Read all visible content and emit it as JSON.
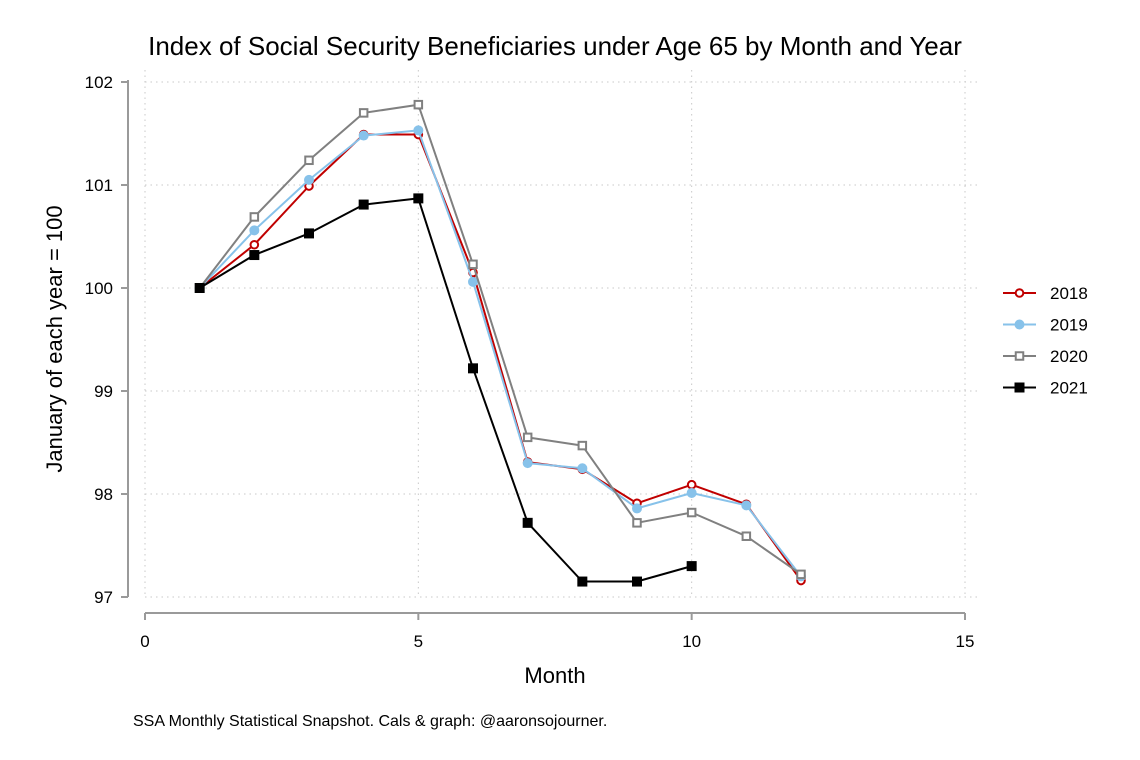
{
  "chart_data": {
    "type": "line",
    "title": "Index of Social Security Beneficiaries under Age 65 by Month and Year",
    "xlabel": "Month",
    "ylabel": "January of each year = 100",
    "caption": "SSA Monthly Statistical Snapshot. Cals & graph: @aaronsojourner.",
    "xlim": [
      0,
      15
    ],
    "ylim": [
      97,
      102
    ],
    "xticks": [
      "0",
      "5",
      "10",
      "15"
    ],
    "yticks": [
      "97",
      "98",
      "99",
      "100",
      "101",
      "102"
    ],
    "grid": true,
    "legend_position": "right",
    "series": [
      {
        "name": "2018",
        "color": "#c00000",
        "marker": "circle-hollow",
        "x": [
          1,
          2,
          3,
          4,
          5,
          6,
          7,
          8,
          9,
          10,
          11,
          12
        ],
        "values": [
          100.0,
          100.42,
          100.99,
          101.49,
          101.49,
          100.15,
          98.31,
          98.24,
          97.91,
          98.09,
          97.9,
          97.16
        ]
      },
      {
        "name": "2019",
        "color": "#87c2ea",
        "marker": "circle-filled",
        "x": [
          1,
          2,
          3,
          4,
          5,
          6,
          7,
          8,
          9,
          10,
          11,
          12
        ],
        "values": [
          100.0,
          100.56,
          101.05,
          101.48,
          101.53,
          100.06,
          98.3,
          98.25,
          97.86,
          98.01,
          97.89,
          97.2
        ]
      },
      {
        "name": "2020",
        "color": "#808080",
        "marker": "square-hollow",
        "x": [
          1,
          2,
          3,
          4,
          5,
          6,
          7,
          8,
          9,
          10,
          11,
          12
        ],
        "values": [
          100.0,
          100.69,
          101.24,
          101.7,
          101.78,
          100.23,
          98.55,
          98.47,
          97.72,
          97.82,
          97.59,
          97.22
        ]
      },
      {
        "name": "2021",
        "color": "#000000",
        "marker": "square-filled",
        "x": [
          1,
          2,
          3,
          4,
          5,
          6,
          7,
          8,
          9,
          10
        ],
        "values": [
          100.0,
          100.32,
          100.53,
          100.81,
          100.87,
          99.22,
          97.72,
          97.15,
          97.15,
          97.3
        ]
      }
    ]
  }
}
